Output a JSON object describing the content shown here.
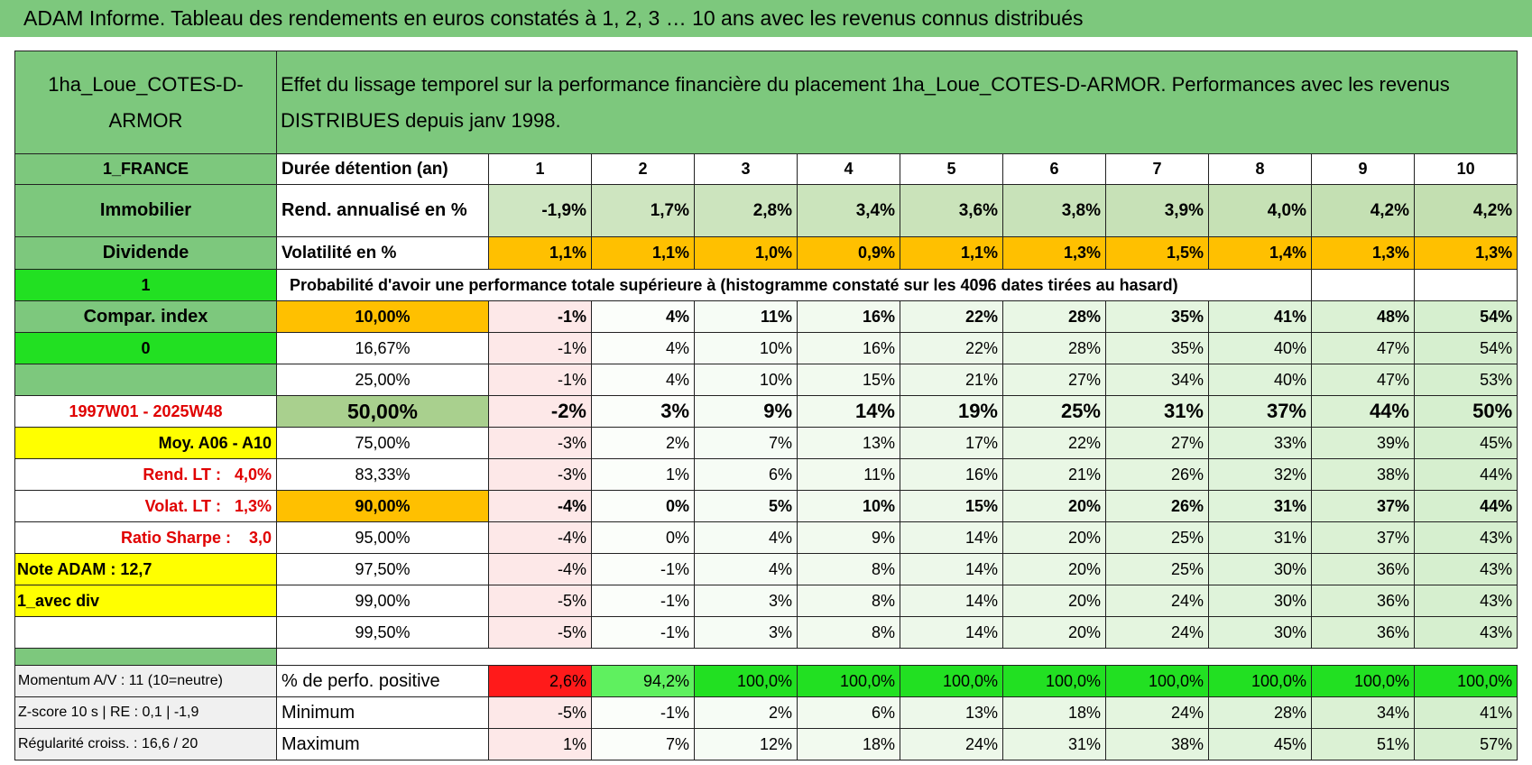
{
  "header": {
    "title": "ADAM Informe. Tableau des rendements en euros constatés à 1, 2, 3 … 10 ans avec les revenus connus distribués"
  },
  "table": {
    "corner": "1ha_Loue_COTES-D-ARMOR",
    "description": "Effet du lissage temporel sur la performance financière du placement 1ha_Loue_COTES-D-ARMOR. Performances avec les revenus DISTRIBUES depuis janv 1998.",
    "rows": [
      {
        "side": "1_FRANCE",
        "label": "Durée détention (an)",
        "cells": [
          "1",
          "2",
          "3",
          "4",
          "5",
          "6",
          "7",
          "8",
          "9",
          "10"
        ]
      },
      {
        "side": "Immobilier",
        "label": "Rend. annualisé en %",
        "cells": [
          "-1,9%",
          "1,7%",
          "2,8%",
          "3,4%",
          "3,6%",
          "3,8%",
          "3,9%",
          "4,0%",
          "4,2%",
          "4,2%"
        ]
      },
      {
        "side": "Dividende",
        "label": "Volatilité en %",
        "cells": [
          "1,1%",
          "1,1%",
          "1,0%",
          "0,9%",
          "1,1%",
          "1,3%",
          "1,5%",
          "1,4%",
          "1,3%",
          "1,3%"
        ]
      },
      {
        "side": "1",
        "label": "Probabilité d'avoir une performance totale supérieure à (histogramme constaté sur les 4096 dates tirées au hasard)"
      },
      {
        "side": "Compar. index",
        "label": "10,00%",
        "cells": [
          "-1%",
          "4%",
          "11%",
          "16%",
          "22%",
          "28%",
          "35%",
          "41%",
          "48%",
          "54%"
        ]
      },
      {
        "side": "0",
        "label": "16,67%",
        "cells": [
          "-1%",
          "4%",
          "10%",
          "16%",
          "22%",
          "28%",
          "35%",
          "40%",
          "47%",
          "54%"
        ]
      },
      {
        "label": "25,00%",
        "cells": [
          "-1%",
          "4%",
          "10%",
          "15%",
          "21%",
          "27%",
          "34%",
          "40%",
          "47%",
          "53%"
        ]
      },
      {
        "side": "1997W01 - 2025W48",
        "label": "50,00%",
        "cells": [
          "-2%",
          "3%",
          "9%",
          "14%",
          "19%",
          "25%",
          "31%",
          "37%",
          "44%",
          "50%"
        ]
      },
      {
        "side": "Moy. A06 - A10",
        "label": "75,00%",
        "cells": [
          "-3%",
          "2%",
          "7%",
          "13%",
          "17%",
          "22%",
          "27%",
          "33%",
          "39%",
          "45%"
        ]
      },
      {
        "side": "Rend. LT :   4,0%",
        "label": "83,33%",
        "cells": [
          "-3%",
          "1%",
          "6%",
          "11%",
          "16%",
          "21%",
          "26%",
          "32%",
          "38%",
          "44%"
        ]
      },
      {
        "side": "Volat. LT :   1,3%",
        "label": "90,00%",
        "cells": [
          "-4%",
          "0%",
          "5%",
          "10%",
          "15%",
          "20%",
          "26%",
          "31%",
          "37%",
          "44%"
        ]
      },
      {
        "side": "Ratio Sharpe :    3,0",
        "label": "95,00%",
        "cells": [
          "-4%",
          "0%",
          "4%",
          "9%",
          "14%",
          "20%",
          "25%",
          "31%",
          "37%",
          "43%"
        ]
      },
      {
        "side": "Note ADAM : 12,7",
        "label": "97,50%",
        "cells": [
          "-4%",
          "-1%",
          "4%",
          "8%",
          "14%",
          "20%",
          "25%",
          "30%",
          "36%",
          "43%"
        ]
      },
      {
        "side": "1_avec div",
        "label": "99,00%",
        "cells": [
          "-5%",
          "-1%",
          "3%",
          "8%",
          "14%",
          "20%",
          "24%",
          "30%",
          "36%",
          "43%"
        ]
      },
      {
        "label": "99,50%",
        "cells": [
          "-5%",
          "-1%",
          "3%",
          "8%",
          "14%",
          "20%",
          "24%",
          "30%",
          "36%",
          "43%"
        ]
      }
    ],
    "stats": [
      {
        "side": "Momentum A/V : 11 (10=neutre)",
        "label": "% de perfo. positive",
        "cells": [
          "2,6%",
          "94,2%",
          "100,0%",
          "100,0%",
          "100,0%",
          "100,0%",
          "100,0%",
          "100,0%",
          "100,0%",
          "100,0%"
        ]
      },
      {
        "side": "Z-score 10 s | RE : 0,1 | -1,9",
        "label": "Minimum",
        "cells": [
          "-5%",
          "-1%",
          "2%",
          "6%",
          "13%",
          "18%",
          "24%",
          "28%",
          "34%",
          "41%"
        ]
      },
      {
        "side": "Régularité croiss. : 16,6 / 20",
        "label": "Maximum",
        "cells": [
          "1%",
          "7%",
          "12%",
          "18%",
          "24%",
          "31%",
          "38%",
          "45%",
          "51%",
          "57%"
        ]
      }
    ]
  }
}
